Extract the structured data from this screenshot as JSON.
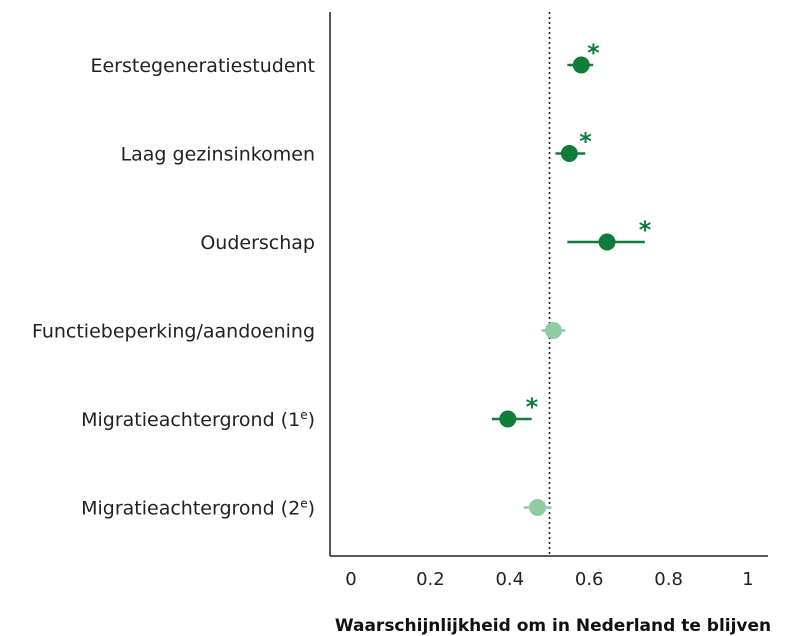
{
  "chart_data": {
    "type": "scatter",
    "xlabel": "Waarschijnlijkheid om in Nederland te blijven",
    "xlim": [
      -0.05,
      1.03
    ],
    "xticks": [
      0,
      0.2,
      0.4,
      0.6,
      0.8,
      1
    ],
    "xtick_labels": [
      "0",
      "0.2",
      "0.4",
      "0.6",
      "0.8",
      "1"
    ],
    "reference_line": 0.5,
    "grid": false,
    "colors": {
      "significant": "#0f7d3a",
      "not_significant": "#8fcca3"
    },
    "categories": [
      {
        "label": "Eerstegeneratiestudent",
        "suffix": "",
        "sup": "",
        "value": 0.58,
        "ci_low": 0.545,
        "ci_high": 0.61,
        "significant": true,
        "marker": "*"
      },
      {
        "label": "Laag gezinsinkomen",
        "suffix": "",
        "sup": "",
        "value": 0.55,
        "ci_low": 0.515,
        "ci_high": 0.59,
        "significant": true,
        "marker": "*"
      },
      {
        "label": "Ouderschap",
        "suffix": "",
        "sup": "",
        "value": 0.645,
        "ci_low": 0.545,
        "ci_high": 0.74,
        "significant": true,
        "marker": "*"
      },
      {
        "label": "Functiebeperking/aandoening",
        "suffix": "",
        "sup": "",
        "value": 0.51,
        "ci_low": 0.48,
        "ci_high": 0.54,
        "significant": false,
        "marker": ""
      },
      {
        "label": "Migratieachtergrond (1",
        "suffix": ")",
        "sup": "e",
        "value": 0.395,
        "ci_low": 0.355,
        "ci_high": 0.455,
        "significant": true,
        "marker": "*"
      },
      {
        "label": "Migratieachtergrond (2",
        "suffix": ")",
        "sup": "e",
        "value": 0.47,
        "ci_low": 0.435,
        "ci_high": 0.505,
        "significant": false,
        "marker": ""
      }
    ]
  }
}
